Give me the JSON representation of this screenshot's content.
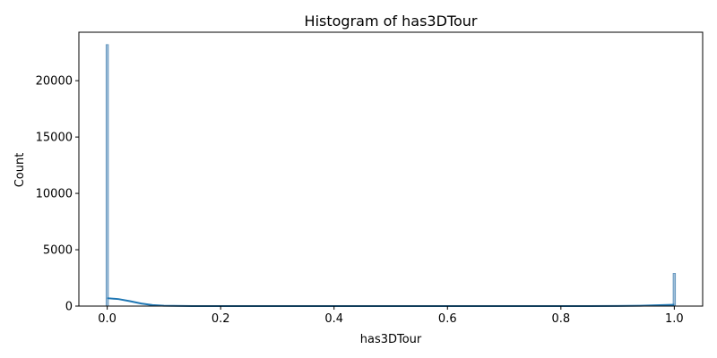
{
  "chart_data": {
    "type": "bar",
    "title": "Histogram of has3DTour",
    "xlabel": "has3DTour",
    "ylabel": "Count",
    "xlim": [
      -0.05,
      1.05
    ],
    "ylim": [
      0,
      24300
    ],
    "x_ticks": [
      0.0,
      0.2,
      0.4,
      0.6,
      0.8,
      1.0
    ],
    "x_tick_labels": [
      "0.0",
      "0.2",
      "0.4",
      "0.6",
      "0.8",
      "1.0"
    ],
    "y_ticks": [
      0,
      5000,
      10000,
      15000,
      20000
    ],
    "y_tick_labels": [
      "0",
      "5000",
      "10000",
      "15000",
      "20000"
    ],
    "bins": [
      {
        "x": 0.0,
        "count": 23200
      },
      {
        "x": 1.0,
        "count": 2900
      }
    ],
    "kde": {
      "x": [
        0.0,
        0.02,
        0.04,
        0.06,
        0.08,
        0.1,
        0.15,
        0.2,
        0.4,
        0.6,
        0.8,
        0.85,
        0.9,
        0.94,
        0.96,
        0.98,
        1.0
      ],
      "y": [
        700,
        620,
        440,
        230,
        90,
        30,
        5,
        0,
        0,
        0,
        0,
        3,
        10,
        30,
        55,
        90,
        120
      ]
    },
    "grid": false,
    "legend": "none",
    "colors": {
      "bar_fill": "#9fbfd9",
      "bar_edge": "#5a8fba",
      "kde_line": "#1f77b4",
      "axis": "#000000"
    }
  }
}
